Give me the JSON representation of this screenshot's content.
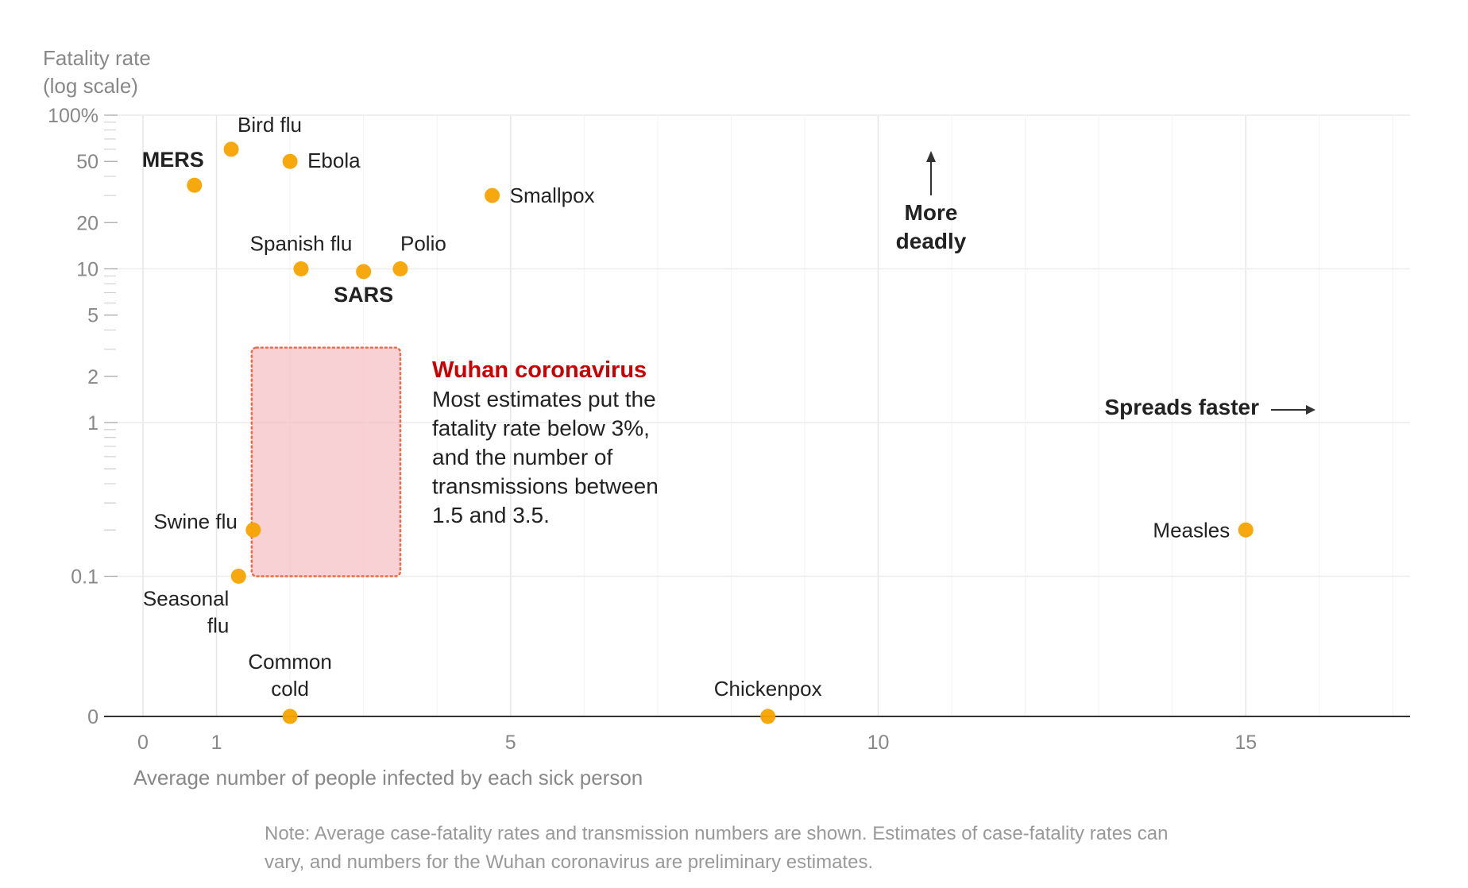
{
  "chart_data": {
    "type": "scatter",
    "ylabel_lines": [
      "Fatality rate",
      "(log scale)"
    ],
    "xlabel": "Average number of people infected by each sick person",
    "y_scale": "log (with 0 baseline)",
    "y_tick_labels": [
      "100%",
      "50",
      "20",
      "10",
      "5",
      "2",
      "1",
      "0.1",
      "0"
    ],
    "x_tick_labels": [
      "0",
      "1",
      "5",
      "10",
      "15"
    ],
    "xlim": [
      0,
      17.3
    ],
    "ylim": [
      0,
      100
    ],
    "grid": true,
    "points": [
      {
        "name": "Bird flu",
        "x": 1.2,
        "y": 60
      },
      {
        "name": "MERS",
        "x": 0.7,
        "y": 35
      },
      {
        "name": "Ebola",
        "x": 2.0,
        "y": 50
      },
      {
        "name": "Smallpox",
        "x": 4.75,
        "y": 30
      },
      {
        "name": "Spanish flu",
        "x": 2.15,
        "y": 10
      },
      {
        "name": "SARS",
        "x": 3.0,
        "y": 9.6
      },
      {
        "name": "Polio",
        "x": 3.5,
        "y": 10
      },
      {
        "name": "Swine flu",
        "x": 1.5,
        "y": 0.2
      },
      {
        "name": "Seasonal",
        "x": 1.3,
        "y": 0.1
      },
      {
        "name": "Common",
        "x": 2.0,
        "y": 0
      },
      {
        "name": "Chickenpox",
        "x": 8.5,
        "y": 0
      },
      {
        "name": "Measles",
        "x": 15,
        "y": 0.2
      }
    ],
    "label_lines": {
      "Seasonal": [
        "Seasonal",
        "flu"
      ],
      "Common": [
        "Common",
        "cold"
      ]
    },
    "bold_labels": [
      "MERS",
      "SARS"
    ],
    "wuhan_range": {
      "x": [
        1.5,
        3.5
      ],
      "y": [
        0.1,
        3
      ]
    },
    "wuhan_title": "Wuhan coronavirus",
    "wuhan_text": [
      "Most estimates put the",
      "fatality rate below 3%,",
      "and the number of",
      "transmissions between",
      "1.5 and 3.5."
    ],
    "more_deadly": [
      "More",
      "deadly"
    ],
    "spreads_faster": "Spreads faster",
    "note_lines": [
      "Note: Average case-fatality rates and transmission numbers are shown. Estimates of case-fatality rates can",
      "vary, and numbers for the Wuhan coronavirus are preliminary estimates."
    ],
    "colors": {
      "point": "#f5a300",
      "wuhan_fill": "#f4b8be",
      "wuhan_border": "#f06a4a",
      "wuhan_title": "#cc0000",
      "grid": "#eeeeee",
      "axis": "#333333"
    }
  }
}
